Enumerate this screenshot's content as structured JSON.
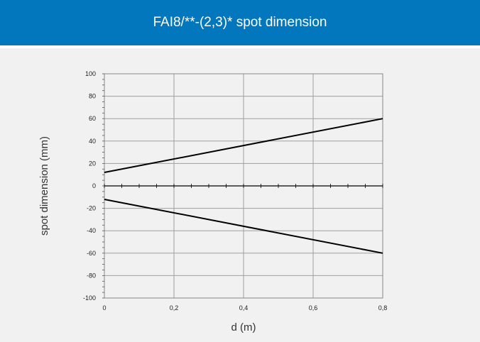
{
  "header": {
    "title": "FAI8/**-(2,3)* spot dimension",
    "background_color": "#0277bd"
  },
  "chart_data": {
    "type": "line",
    "title": "FAI8/**-(2,3)* spot dimension",
    "xlabel": "d (m)",
    "ylabel": "spot dimension (mm)",
    "xlim": [
      0,
      0.8
    ],
    "ylim": [
      -100,
      100
    ],
    "x_ticks": [
      "0",
      "0,2",
      "0,4",
      "0,6",
      "0,8"
    ],
    "y_ticks": [
      "100",
      "80",
      "60",
      "40",
      "20",
      "0",
      "-20",
      "-40",
      "-60",
      "-80",
      "-100"
    ],
    "grid": true,
    "line_color": "#000000",
    "series": [
      {
        "x": [
          0,
          0.8
        ],
        "y": [
          12,
          60
        ]
      },
      {
        "x": [
          0,
          0.8
        ],
        "y": [
          -12,
          -60
        ]
      }
    ]
  }
}
